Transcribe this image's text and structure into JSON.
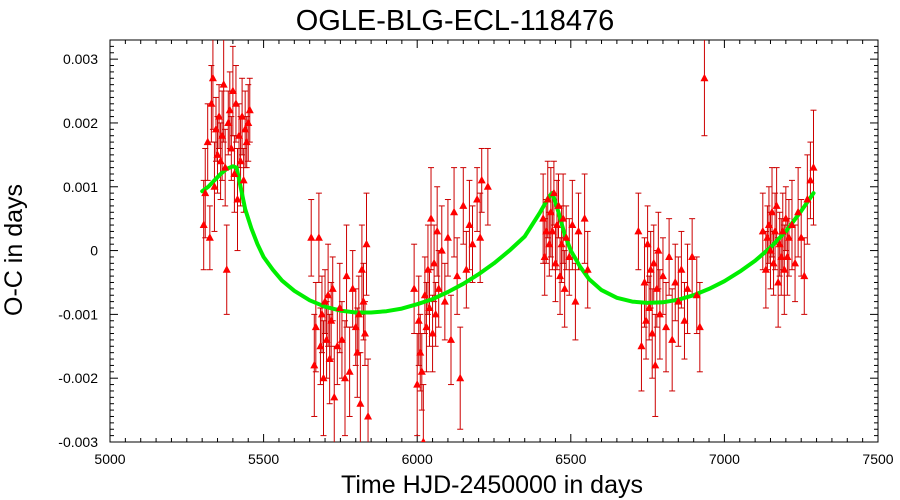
{
  "chart_data": {
    "type": "scatter",
    "title": "OGLE-BLG-ECL-118476",
    "xlabel": "Time HJD-2450000 in days",
    "ylabel": "O-C in days",
    "xlim": [
      5000,
      7500
    ],
    "ylim": [
      -0.003,
      0.0033
    ],
    "x_ticks": [
      5000,
      5500,
      6000,
      6500,
      7000,
      7500
    ],
    "x_tick_labels": [
      "5000",
      "5500",
      "6000",
      "6500",
      "7000",
      "7500"
    ],
    "y_ticks": [
      -0.003,
      -0.002,
      -0.001,
      0,
      0.001,
      0.002,
      0.003
    ],
    "y_tick_labels": [
      "-0.003",
      "-0.002",
      "-0.001",
      "0",
      "0.001",
      "0.002",
      "0.003"
    ],
    "grid": false,
    "colors": {
      "points": "#ff0000",
      "errorbars": "#cc0000",
      "model": "#00ee00"
    },
    "series": [
      {
        "marker": "triangle",
        "kind": "points-with-errorbars",
        "points": [
          {
            "x": 5305,
            "y": 0.0004,
            "err": 0.0007
          },
          {
            "x": 5310,
            "y": 0.0009,
            "err": 0.0007
          },
          {
            "x": 5318,
            "y": 0.0017,
            "err": 0.0006
          },
          {
            "x": 5325,
            "y": 0.0002,
            "err": 0.0005
          },
          {
            "x": 5330,
            "y": 0.0023,
            "err": 0.0006
          },
          {
            "x": 5335,
            "y": 0.0027,
            "err": 0.0008
          },
          {
            "x": 5340,
            "y": 0.001,
            "err": 0.0007
          },
          {
            "x": 5345,
            "y": 0.0019,
            "err": 0.0005
          },
          {
            "x": 5350,
            "y": 0.0015,
            "err": 0.0006
          },
          {
            "x": 5355,
            "y": 0.0021,
            "err": 0.0005
          },
          {
            "x": 5360,
            "y": 0.0014,
            "err": 0.0006
          },
          {
            "x": 5365,
            "y": 0.0018,
            "err": 0.0007
          },
          {
            "x": 5370,
            "y": 0.0026,
            "err": 0.0009
          },
          {
            "x": 5375,
            "y": 0.0013,
            "err": 0.0006
          },
          {
            "x": 5380,
            "y": -0.0003,
            "err": 0.0007
          },
          {
            "x": 5385,
            "y": 0.002,
            "err": 0.0005
          },
          {
            "x": 5390,
            "y": 0.0022,
            "err": 0.0006
          },
          {
            "x": 5395,
            "y": 0.0016,
            "err": 0.0005
          },
          {
            "x": 5400,
            "y": 0.0025,
            "err": 0.0007
          },
          {
            "x": 5405,
            "y": 0.0012,
            "err": 0.0006
          },
          {
            "x": 5410,
            "y": 0.0023,
            "err": 0.0006
          },
          {
            "x": 5415,
            "y": 0.0008,
            "err": 0.0008
          },
          {
            "x": 5420,
            "y": 0.0018,
            "err": 0.0005
          },
          {
            "x": 5425,
            "y": 0.0014,
            "err": 0.0007
          },
          {
            "x": 5430,
            "y": 0.0021,
            "err": 0.0006
          },
          {
            "x": 5435,
            "y": 0.0011,
            "err": 0.0005
          },
          {
            "x": 5440,
            "y": 0.0019,
            "err": 0.0006
          },
          {
            "x": 5445,
            "y": 0.0017,
            "err": 0.0004
          },
          {
            "x": 5450,
            "y": 0.002,
            "err": 0.0006
          },
          {
            "x": 5455,
            "y": 0.0022,
            "err": 0.0005
          },
          {
            "x": 5655,
            "y": 0.0002,
            "err": 0.0006
          },
          {
            "x": 5665,
            "y": -0.0018,
            "err": 0.0008
          },
          {
            "x": 5670,
            "y": -0.0012,
            "err": 0.0007
          },
          {
            "x": 5680,
            "y": 0.0002,
            "err": 0.0007
          },
          {
            "x": 5685,
            "y": -0.0015,
            "err": 0.0006
          },
          {
            "x": 5690,
            "y": -0.001,
            "err": 0.0006
          },
          {
            "x": 5695,
            "y": -0.002,
            "err": 0.0009
          },
          {
            "x": 5700,
            "y": -0.0008,
            "err": 0.0005
          },
          {
            "x": 5705,
            "y": -0.0014,
            "err": 0.0006
          },
          {
            "x": 5710,
            "y": -0.0007,
            "err": 0.0008
          },
          {
            "x": 5715,
            "y": -0.0017,
            "err": 0.0007
          },
          {
            "x": 5720,
            "y": -0.0011,
            "err": 0.0006
          },
          {
            "x": 5725,
            "y": -0.0006,
            "err": 0.0005
          },
          {
            "x": 5730,
            "y": -0.0023,
            "err": 0.0008
          },
          {
            "x": 5740,
            "y": -0.0015,
            "err": 0.0006
          },
          {
            "x": 5748,
            "y": -0.0009,
            "err": 0.0007
          },
          {
            "x": 5755,
            "y": -0.0014,
            "err": 0.0006
          },
          {
            "x": 5765,
            "y": -0.002,
            "err": 0.0009
          },
          {
            "x": 5770,
            "y": -0.0004,
            "err": 0.0008
          },
          {
            "x": 5780,
            "y": -0.0019,
            "err": 0.0007
          },
          {
            "x": 5790,
            "y": -0.0006,
            "err": 0.0006
          },
          {
            "x": 5800,
            "y": -0.0012,
            "err": 0.0006
          },
          {
            "x": 5805,
            "y": -0.0016,
            "err": 0.0007
          },
          {
            "x": 5810,
            "y": -0.001,
            "err": 0.0006
          },
          {
            "x": 5815,
            "y": -0.0024,
            "err": 0.0008
          },
          {
            "x": 5820,
            "y": -0.0003,
            "err": 0.0007
          },
          {
            "x": 5825,
            "y": -0.0008,
            "err": 0.0006
          },
          {
            "x": 5830,
            "y": -0.0013,
            "err": 0.0005
          },
          {
            "x": 5835,
            "y": 0.0001,
            "err": 0.0008
          },
          {
            "x": 5840,
            "y": -0.0026,
            "err": 0.0009
          },
          {
            "x": 5990,
            "y": -0.0006,
            "err": 0.0007
          },
          {
            "x": 6000,
            "y": -0.0021,
            "err": 0.0008
          },
          {
            "x": 6005,
            "y": -0.0011,
            "err": 0.0007
          },
          {
            "x": 6010,
            "y": -0.0016,
            "err": 0.0006
          },
          {
            "x": 6015,
            "y": -0.0019,
            "err": 0.0006
          },
          {
            "x": 6020,
            "y": -0.003,
            "err": 0.0009
          },
          {
            "x": 6025,
            "y": -0.0007,
            "err": 0.0006
          },
          {
            "x": 6030,
            "y": -0.0012,
            "err": 0.0007
          },
          {
            "x": 6035,
            "y": -0.0003,
            "err": 0.0007
          },
          {
            "x": 6040,
            "y": -0.0009,
            "err": 0.0006
          },
          {
            "x": 6045,
            "y": 0.0005,
            "err": 0.0008
          },
          {
            "x": 6050,
            "y": -0.0013,
            "err": 0.0006
          },
          {
            "x": 6055,
            "y": -0.0002,
            "err": 0.0006
          },
          {
            "x": 6060,
            "y": -0.001,
            "err": 0.0005
          },
          {
            "x": 6065,
            "y": 0.0003,
            "err": 0.0007
          },
          {
            "x": 6070,
            "y": -0.0006,
            "err": 0.0006
          },
          {
            "x": 6080,
            "y": 0.0,
            "err": 0.0007
          },
          {
            "x": 6090,
            "y": -0.0008,
            "err": 0.0006
          },
          {
            "x": 6100,
            "y": 0.0002,
            "err": 0.0006
          },
          {
            "x": 6110,
            "y": -0.0014,
            "err": 0.0007
          },
          {
            "x": 6120,
            "y": 0.0006,
            "err": 0.0007
          },
          {
            "x": 6130,
            "y": -0.0004,
            "err": 0.0006
          },
          {
            "x": 6140,
            "y": -0.002,
            "err": 0.0008
          },
          {
            "x": 6150,
            "y": 0.0007,
            "err": 0.0006
          },
          {
            "x": 6160,
            "y": -0.0003,
            "err": 0.0006
          },
          {
            "x": 6170,
            "y": 0.0004,
            "err": 0.0007
          },
          {
            "x": 6180,
            "y": 0.0001,
            "err": 0.0006
          },
          {
            "x": 6195,
            "y": 0.0008,
            "err": 0.0005
          },
          {
            "x": 6205,
            "y": 0.0002,
            "err": 0.0007
          },
          {
            "x": 6210,
            "y": 0.0011,
            "err": 0.0005
          },
          {
            "x": 6230,
            "y": 0.001,
            "err": 0.0006
          },
          {
            "x": 6410,
            "y": 0.0005,
            "err": 0.0007
          },
          {
            "x": 6415,
            "y": -0.0001,
            "err": 0.0006
          },
          {
            "x": 6420,
            "y": 0.0003,
            "err": 0.0005
          },
          {
            "x": 6425,
            "y": 0.0008,
            "err": 0.0006
          },
          {
            "x": 6430,
            "y": 0.0001,
            "err": 0.0005
          },
          {
            "x": 6435,
            "y": 0.0006,
            "err": 0.0007
          },
          {
            "x": 6440,
            "y": 0.0003,
            "err": 0.0006
          },
          {
            "x": 6445,
            "y": 0.0009,
            "err": 0.0005
          },
          {
            "x": 6450,
            "y": -0.0002,
            "err": 0.0006
          },
          {
            "x": 6455,
            "y": 0.0004,
            "err": 0.0007
          },
          {
            "x": 6460,
            "y": 0.0007,
            "err": 0.0005
          },
          {
            "x": 6465,
            "y": -0.0004,
            "err": 0.0006
          },
          {
            "x": 6470,
            "y": 0.0001,
            "err": 0.0006
          },
          {
            "x": 6475,
            "y": 0.0005,
            "err": 0.0007
          },
          {
            "x": 6480,
            "y": -0.0006,
            "err": 0.0006
          },
          {
            "x": 6485,
            "y": 0.0002,
            "err": 0.0005
          },
          {
            "x": 6495,
            "y": -0.0001,
            "err": 0.0006
          },
          {
            "x": 6505,
            "y": 0.0004,
            "err": 0.0007
          },
          {
            "x": 6515,
            "y": -0.0008,
            "err": 0.0006
          },
          {
            "x": 6525,
            "y": 0.0003,
            "err": 0.0006
          },
          {
            "x": 6545,
            "y": 0.0005,
            "err": 0.0007
          },
          {
            "x": 6555,
            "y": -0.0003,
            "err": 0.0006
          },
          {
            "x": 6720,
            "y": 0.0003,
            "err": 0.0006
          },
          {
            "x": 6730,
            "y": -0.0015,
            "err": 0.0007
          },
          {
            "x": 6740,
            "y": -0.0005,
            "err": 0.0007
          },
          {
            "x": 6745,
            "y": -0.0011,
            "err": 0.0006
          },
          {
            "x": 6750,
            "y": 0.0001,
            "err": 0.0006
          },
          {
            "x": 6755,
            "y": -0.0009,
            "err": 0.0005
          },
          {
            "x": 6760,
            "y": -0.0003,
            "err": 0.0006
          },
          {
            "x": 6765,
            "y": -0.0013,
            "err": 0.0007
          },
          {
            "x": 6770,
            "y": -0.0002,
            "err": 0.0006
          },
          {
            "x": 6775,
            "y": -0.0018,
            "err": 0.0008
          },
          {
            "x": 6780,
            "y": -0.0006,
            "err": 0.0006
          },
          {
            "x": 6785,
            "y": 0.0,
            "err": 0.0006
          },
          {
            "x": 6790,
            "y": -0.001,
            "err": 0.0007
          },
          {
            "x": 6800,
            "y": -0.0004,
            "err": 0.0006
          },
          {
            "x": 6810,
            "y": -0.0012,
            "err": 0.0007
          },
          {
            "x": 6820,
            "y": -0.0001,
            "err": 0.0006
          },
          {
            "x": 6830,
            "y": -0.0014,
            "err": 0.0008
          },
          {
            "x": 6840,
            "y": -0.0005,
            "err": 0.0006
          },
          {
            "x": 6850,
            "y": -0.0008,
            "err": 0.0007
          },
          {
            "x": 6860,
            "y": -0.0003,
            "err": 0.0006
          },
          {
            "x": 6870,
            "y": -0.0011,
            "err": 0.0006
          },
          {
            "x": 6880,
            "y": -0.0006,
            "err": 0.0007
          },
          {
            "x": 6895,
            "y": -0.0001,
            "err": 0.0006
          },
          {
            "x": 6910,
            "y": -0.0007,
            "err": 0.0006
          },
          {
            "x": 6920,
            "y": -0.0012,
            "err": 0.0007
          },
          {
            "x": 6935,
            "y": 0.0027,
            "err": 0.0009
          },
          {
            "x": 7125,
            "y": 0.0003,
            "err": 0.0006
          },
          {
            "x": 7135,
            "y": -0.0003,
            "err": 0.0006
          },
          {
            "x": 7140,
            "y": 0.0002,
            "err": 0.0005
          },
          {
            "x": 7145,
            "y": 0.0004,
            "err": 0.0006
          },
          {
            "x": 7150,
            "y": 0.0,
            "err": 0.0006
          },
          {
            "x": 7155,
            "y": 0.0006,
            "err": 0.0007
          },
          {
            "x": 7160,
            "y": -0.0002,
            "err": 0.0005
          },
          {
            "x": 7165,
            "y": 0.0003,
            "err": 0.0006
          },
          {
            "x": 7170,
            "y": 0.0007,
            "err": 0.0006
          },
          {
            "x": 7175,
            "y": -0.0005,
            "err": 0.0007
          },
          {
            "x": 7180,
            "y": 0.0001,
            "err": 0.0005
          },
          {
            "x": 7185,
            "y": -0.0001,
            "err": 0.0006
          },
          {
            "x": 7190,
            "y": 0.0003,
            "err": 0.0006
          },
          {
            "x": 7195,
            "y": -0.0003,
            "err": 0.0007
          },
          {
            "x": 7200,
            "y": 0.0005,
            "err": 0.0005
          },
          {
            "x": 7205,
            "y": -0.0001,
            "err": 0.0006
          },
          {
            "x": 7210,
            "y": 0.0002,
            "err": 0.0006
          },
          {
            "x": 7220,
            "y": 0.0004,
            "err": 0.0007
          },
          {
            "x": 7230,
            "y": -0.0002,
            "err": 0.0006
          },
          {
            "x": 7240,
            "y": 0.0006,
            "err": 0.0007
          },
          {
            "x": 7250,
            "y": 0.0002,
            "err": 0.0006
          },
          {
            "x": 7260,
            "y": -0.0004,
            "err": 0.0006
          },
          {
            "x": 7270,
            "y": 0.0008,
            "err": 0.0007
          },
          {
            "x": 7280,
            "y": 0.0011,
            "err": 0.0006
          },
          {
            "x": 7290,
            "y": 0.0013,
            "err": 0.0009
          }
        ]
      },
      {
        "kind": "model-curve",
        "x": [
          5300,
          5320,
          5340,
          5360,
          5380,
          5400,
          5412,
          5425,
          5440,
          5460,
          5480,
          5500,
          5530,
          5560,
          5600,
          5650,
          5700,
          5750,
          5800,
          5850,
          5900,
          5950,
          6000,
          6050,
          6100,
          6150,
          6200,
          6250,
          6300,
          6350,
          6400,
          6430,
          6440,
          6460,
          6480,
          6500,
          6530,
          6560,
          6600,
          6650,
          6700,
          6750,
          6800,
          6850,
          6900,
          6950,
          7000,
          7050,
          7100,
          7150,
          7200,
          7250,
          7290
        ],
        "y": [
          0.00093,
          0.001,
          0.0011,
          0.0012,
          0.00128,
          0.00132,
          0.0013,
          0.001,
          0.00065,
          0.00035,
          0.0001,
          -0.0001,
          -0.0003,
          -0.00047,
          -0.00063,
          -0.00078,
          -0.00088,
          -0.00094,
          -0.00097,
          -0.00097,
          -0.00095,
          -0.00091,
          -0.00084,
          -0.00076,
          -0.00065,
          -0.00052,
          -0.00037,
          -0.0002,
          0.0,
          0.00022,
          0.0006,
          0.00085,
          0.0009,
          0.0006,
          0.00025,
          0.0,
          -0.00025,
          -0.00045,
          -0.00062,
          -0.00074,
          -0.0008,
          -0.00082,
          -0.00081,
          -0.00077,
          -0.0007,
          -0.0006,
          -0.00048,
          -0.00033,
          -0.00016,
          5e-05,
          0.0003,
          0.00062,
          0.0009
        ]
      }
    ]
  }
}
